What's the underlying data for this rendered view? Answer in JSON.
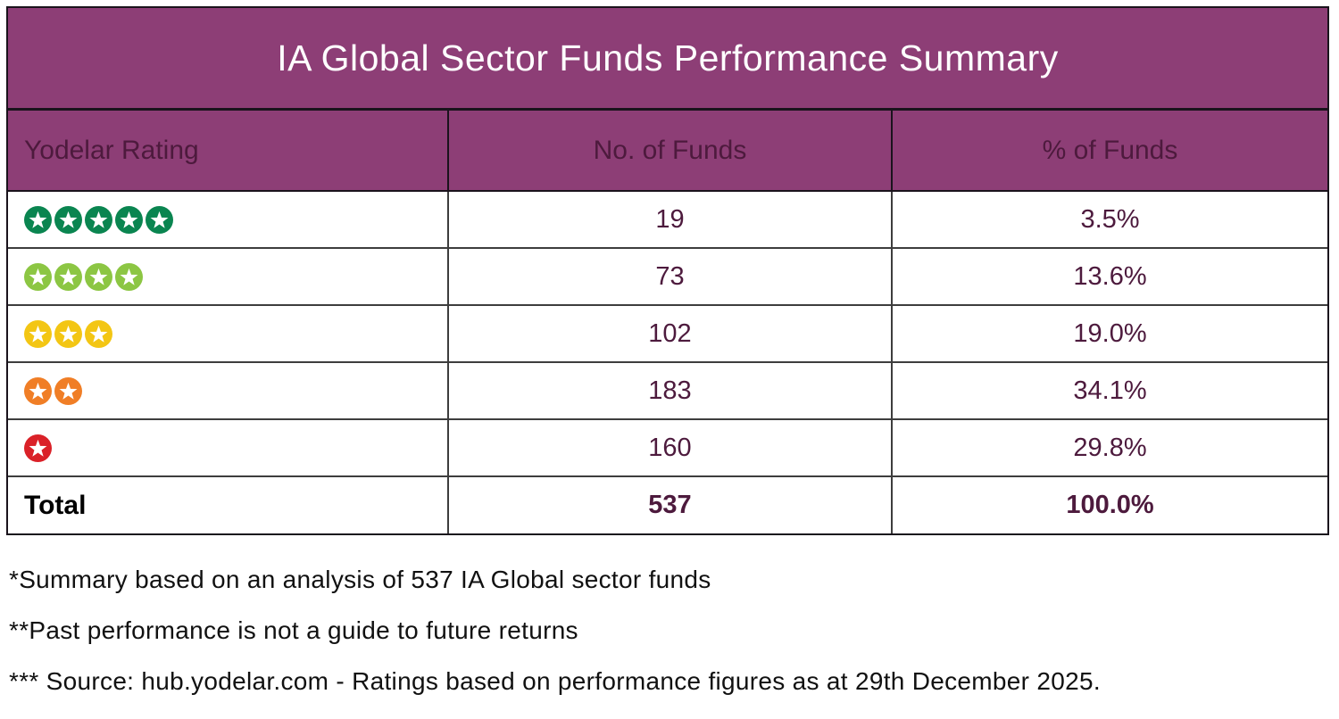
{
  "colors": {
    "header_bg": "#8D3E76",
    "header_text": "#FFFFFF",
    "value_text": "#4D1A3D",
    "border_dark": "#1A131C",
    "grid_line": "#3D3D3D"
  },
  "table": {
    "title": "IA Global Sector Funds Performance Summary",
    "columns": [
      "Yodelar Rating",
      "No. of Funds",
      "% of Funds"
    ],
    "rows": [
      {
        "rating": 5,
        "rating_label": "5-star rating",
        "star_color": "#0A8550",
        "funds": "19",
        "percent": "3.5%"
      },
      {
        "rating": 4,
        "rating_label": "4-star rating",
        "star_color": "#8CC643",
        "funds": "73",
        "percent": "13.6%"
      },
      {
        "rating": 3,
        "rating_label": "3-star rating",
        "star_color": "#F3C614",
        "funds": "102",
        "percent": "19.0%"
      },
      {
        "rating": 2,
        "rating_label": "2-star rating",
        "star_color": "#F07E26",
        "funds": "183",
        "percent": "34.1%"
      },
      {
        "rating": 1,
        "rating_label": "1-star rating",
        "star_color": "#DA2128",
        "funds": "160",
        "percent": "29.8%"
      }
    ],
    "total": {
      "label": "Total",
      "funds": "537",
      "percent": "100.0%"
    }
  },
  "footnotes": [
    "*Summary based on an analysis of 537 IA Global sector funds",
    "**Past performance is not a guide to future returns",
    "*** Source: hub.yodelar.com - Ratings based on performance figures as at 29th December 2025."
  ],
  "chart_data": {
    "type": "table",
    "title": "IA Global Sector Funds Performance Summary",
    "columns": [
      "Yodelar Rating",
      "No. of Funds",
      "% of Funds"
    ],
    "rows": [
      {
        "yodelar_rating_stars": 5,
        "no_of_funds": 19,
        "pct_of_funds": 3.5
      },
      {
        "yodelar_rating_stars": 4,
        "no_of_funds": 73,
        "pct_of_funds": 13.6
      },
      {
        "yodelar_rating_stars": 3,
        "no_of_funds": 102,
        "pct_of_funds": 19.0
      },
      {
        "yodelar_rating_stars": 2,
        "no_of_funds": 183,
        "pct_of_funds": 34.1
      },
      {
        "yodelar_rating_stars": 1,
        "no_of_funds": 160,
        "pct_of_funds": 29.8
      }
    ],
    "total": {
      "no_of_funds": 537,
      "pct_of_funds": 100.0
    }
  }
}
